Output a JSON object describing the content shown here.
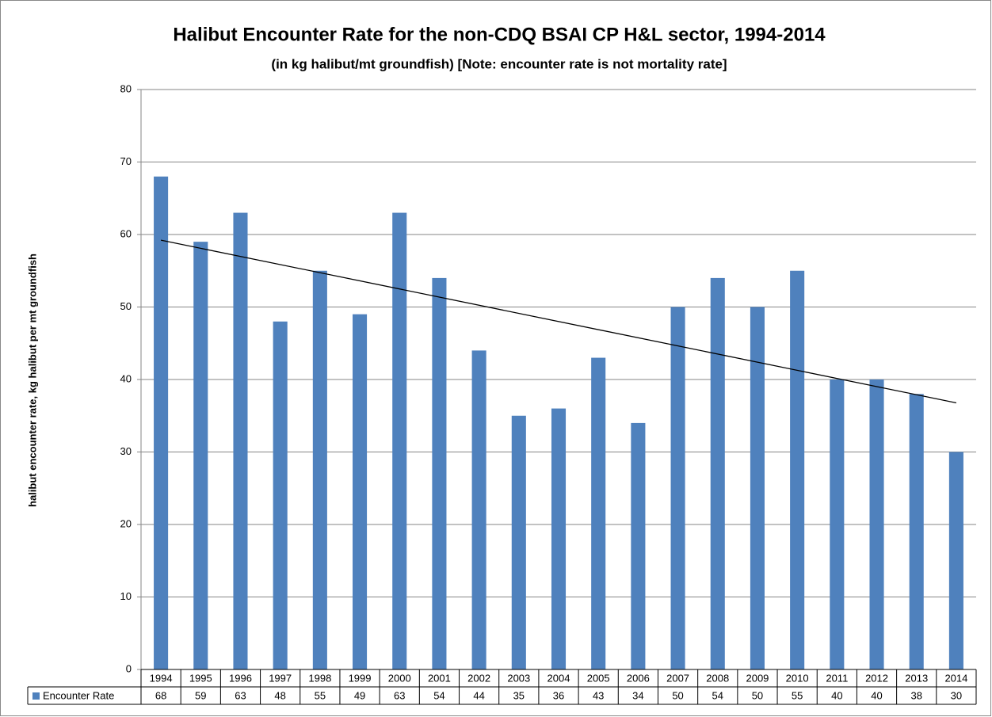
{
  "chart_data": {
    "type": "bar",
    "title": "Halibut Encounter Rate for the non-CDQ BSAI CP H&L sector, 1994-2014",
    "subtitle": "(in kg halibut/mt groundfish) [Note: encounter rate is not mortality rate]",
    "y_label": "halibut encounter rate, kg halibut  per mt groundfish",
    "categories": [
      "1994",
      "1995",
      "1996",
      "1997",
      "1998",
      "1999",
      "2000",
      "2001",
      "2002",
      "2003",
      "2004",
      "2005",
      "2006",
      "2007",
      "2008",
      "2009",
      "2010",
      "2011",
      "2012",
      "2013",
      "2014"
    ],
    "series": [
      {
        "name": "Encounter Rate",
        "color": "#4f81bd",
        "values": [
          68,
          59,
          63,
          48,
          55,
          49,
          63,
          54,
          44,
          35,
          36,
          43,
          34,
          50,
          54,
          50,
          55,
          40,
          40,
          38,
          30
        ]
      }
    ],
    "ylim": [
      0,
      80
    ],
    "yticks": [
      0,
      10,
      20,
      30,
      40,
      50,
      60,
      70,
      80
    ],
    "grid": true,
    "trendline": "linear",
    "data_table": true
  }
}
